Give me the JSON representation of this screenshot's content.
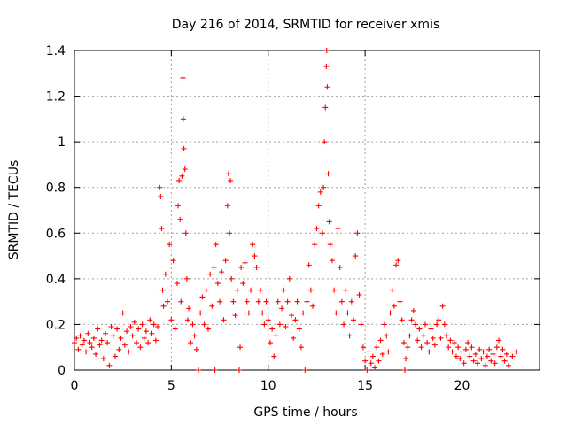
{
  "chart_data": {
    "type": "scatter",
    "title": "Day 216 of 2014, SRMTID for receiver xmis",
    "xlabel": "GPS time / hours",
    "ylabel": "SRMTID / TECUs",
    "xlim": [
      0,
      24
    ],
    "ylim": [
      0,
      1.4
    ],
    "x_ticks": [
      0,
      5,
      10,
      15,
      20
    ],
    "x_tick_labels": [
      "0",
      "5",
      "10",
      "15",
      "20"
    ],
    "y_ticks": [
      0,
      0.2,
      0.4,
      0.6,
      0.8,
      1.0,
      1.2,
      1.4
    ],
    "y_tick_labels": [
      "0",
      "0.2",
      "0.4",
      "0.6",
      "0.8",
      "1",
      "1.2",
      "1.4"
    ],
    "grid": true,
    "marker": "+",
    "color": "#ff0000",
    "series": [
      {
        "name": "SRMTID",
        "points": [
          [
            0.0,
            0.12
          ],
          [
            0.1,
            0.14
          ],
          [
            0.2,
            0.09
          ],
          [
            0.3,
            0.15
          ],
          [
            0.4,
            0.11
          ],
          [
            0.5,
            0.13
          ],
          [
            0.6,
            0.08
          ],
          [
            0.7,
            0.16
          ],
          [
            0.8,
            0.12
          ],
          [
            0.9,
            0.1
          ],
          [
            1.0,
            0.14
          ],
          [
            1.1,
            0.07
          ],
          [
            1.2,
            0.18
          ],
          [
            1.3,
            0.11
          ],
          [
            1.4,
            0.13
          ],
          [
            1.5,
            0.05
          ],
          [
            1.6,
            0.16
          ],
          [
            1.7,
            0.12
          ],
          [
            1.8,
            0.02
          ],
          [
            1.9,
            0.19
          ],
          [
            2.0,
            0.15
          ],
          [
            2.1,
            0.06
          ],
          [
            2.2,
            0.18
          ],
          [
            2.3,
            0.09
          ],
          [
            2.4,
            0.14
          ],
          [
            2.5,
            0.25
          ],
          [
            2.6,
            0.11
          ],
          [
            2.7,
            0.17
          ],
          [
            2.8,
            0.08
          ],
          [
            2.9,
            0.19
          ],
          [
            3.0,
            0.15
          ],
          [
            3.1,
            0.21
          ],
          [
            3.2,
            0.12
          ],
          [
            3.3,
            0.18
          ],
          [
            3.4,
            0.1
          ],
          [
            3.5,
            0.2
          ],
          [
            3.6,
            0.14
          ],
          [
            3.7,
            0.17
          ],
          [
            3.8,
            0.12
          ],
          [
            3.9,
            0.22
          ],
          [
            4.0,
            0.16
          ],
          [
            4.1,
            0.2
          ],
          [
            4.2,
            0.13
          ],
          [
            4.3,
            0.19
          ],
          [
            4.4,
            0.8
          ],
          [
            4.45,
            0.76
          ],
          [
            4.5,
            0.62
          ],
          [
            4.55,
            0.35
          ],
          [
            4.6,
            0.28
          ],
          [
            4.7,
            0.42
          ],
          [
            4.8,
            0.3
          ],
          [
            4.9,
            0.55
          ],
          [
            5.0,
            0.22
          ],
          [
            5.1,
            0.48
          ],
          [
            5.2,
            0.18
          ],
          [
            5.3,
            0.38
          ],
          [
            5.35,
            0.72
          ],
          [
            5.4,
            0.83
          ],
          [
            5.45,
            0.66
          ],
          [
            5.5,
            0.3
          ],
          [
            5.55,
            0.85
          ],
          [
            5.6,
            1.28
          ],
          [
            5.62,
            1.1
          ],
          [
            5.65,
            0.97
          ],
          [
            5.7,
            0.88
          ],
          [
            5.75,
            0.6
          ],
          [
            5.8,
            0.4
          ],
          [
            5.85,
            0.22
          ],
          [
            5.9,
            0.27
          ],
          [
            6.0,
            0.12
          ],
          [
            6.1,
            0.2
          ],
          [
            6.2,
            0.15
          ],
          [
            6.3,
            0.09
          ],
          [
            6.4,
            0.0
          ],
          [
            6.5,
            0.25
          ],
          [
            6.6,
            0.32
          ],
          [
            6.7,
            0.2
          ],
          [
            6.8,
            0.35
          ],
          [
            6.9,
            0.18
          ],
          [
            7.0,
            0.42
          ],
          [
            7.1,
            0.28
          ],
          [
            7.2,
            0.45
          ],
          [
            7.25,
            0.0
          ],
          [
            7.3,
            0.55
          ],
          [
            7.4,
            0.38
          ],
          [
            7.5,
            0.3
          ],
          [
            7.6,
            0.43
          ],
          [
            7.7,
            0.22
          ],
          [
            7.8,
            0.48
          ],
          [
            7.9,
            0.72
          ],
          [
            7.95,
            0.86
          ],
          [
            8.0,
            0.6
          ],
          [
            8.05,
            0.83
          ],
          [
            8.1,
            0.4
          ],
          [
            8.2,
            0.3
          ],
          [
            8.3,
            0.24
          ],
          [
            8.4,
            0.35
          ],
          [
            8.5,
            0.0
          ],
          [
            8.55,
            0.1
          ],
          [
            8.6,
            0.45
          ],
          [
            8.7,
            0.38
          ],
          [
            8.8,
            0.47
          ],
          [
            8.9,
            0.3
          ],
          [
            9.0,
            0.25
          ],
          [
            9.1,
            0.35
          ],
          [
            9.2,
            0.55
          ],
          [
            9.3,
            0.5
          ],
          [
            9.4,
            0.45
          ],
          [
            9.5,
            0.3
          ],
          [
            9.6,
            0.35
          ],
          [
            9.7,
            0.25
          ],
          [
            9.8,
            0.2
          ],
          [
            9.9,
            0.3
          ],
          [
            10.0,
            0.22
          ],
          [
            10.1,
            0.12
          ],
          [
            10.2,
            0.18
          ],
          [
            10.3,
            0.06
          ],
          [
            10.4,
            0.15
          ],
          [
            10.5,
            0.3
          ],
          [
            10.6,
            0.2
          ],
          [
            10.7,
            0.27
          ],
          [
            10.8,
            0.35
          ],
          [
            10.9,
            0.19
          ],
          [
            11.0,
            0.3
          ],
          [
            11.1,
            0.4
          ],
          [
            11.2,
            0.24
          ],
          [
            11.3,
            0.14
          ],
          [
            11.4,
            0.22
          ],
          [
            11.5,
            0.3
          ],
          [
            11.6,
            0.18
          ],
          [
            11.7,
            0.1
          ],
          [
            11.8,
            0.25
          ],
          [
            11.9,
            0.0
          ],
          [
            12.0,
            0.3
          ],
          [
            12.1,
            0.46
          ],
          [
            12.2,
            0.35
          ],
          [
            12.3,
            0.28
          ],
          [
            12.4,
            0.55
          ],
          [
            12.5,
            0.62
          ],
          [
            12.6,
            0.72
          ],
          [
            12.7,
            0.78
          ],
          [
            12.8,
            0.6
          ],
          [
            12.85,
            0.8
          ],
          [
            12.9,
            1.0
          ],
          [
            12.95,
            1.15
          ],
          [
            13.0,
            1.33
          ],
          [
            13.02,
            1.4
          ],
          [
            13.05,
            1.24
          ],
          [
            13.1,
            0.86
          ],
          [
            13.15,
            0.65
          ],
          [
            13.2,
            0.55
          ],
          [
            13.3,
            0.48
          ],
          [
            13.4,
            0.35
          ],
          [
            13.5,
            0.25
          ],
          [
            13.6,
            0.62
          ],
          [
            13.7,
            0.45
          ],
          [
            13.8,
            0.3
          ],
          [
            13.9,
            0.2
          ],
          [
            14.0,
            0.35
          ],
          [
            14.1,
            0.25
          ],
          [
            14.2,
            0.15
          ],
          [
            14.3,
            0.3
          ],
          [
            14.4,
            0.22
          ],
          [
            14.5,
            0.5
          ],
          [
            14.6,
            0.6
          ],
          [
            14.7,
            0.33
          ],
          [
            14.8,
            0.2
          ],
          [
            14.9,
            0.1
          ],
          [
            15.0,
            0.04
          ],
          [
            15.1,
            0.0
          ],
          [
            15.2,
            0.08
          ],
          [
            15.3,
            0.03
          ],
          [
            15.4,
            0.06
          ],
          [
            15.5,
            0.01
          ],
          [
            15.6,
            0.1
          ],
          [
            15.7,
            0.04
          ],
          [
            15.8,
            0.13
          ],
          [
            15.9,
            0.07
          ],
          [
            16.0,
            0.2
          ],
          [
            16.1,
            0.15
          ],
          [
            16.2,
            0.08
          ],
          [
            16.3,
            0.25
          ],
          [
            16.4,
            0.35
          ],
          [
            16.5,
            0.28
          ],
          [
            16.6,
            0.46
          ],
          [
            16.7,
            0.48
          ],
          [
            16.8,
            0.3
          ],
          [
            16.9,
            0.22
          ],
          [
            17.0,
            0.12
          ],
          [
            17.05,
            0.0
          ],
          [
            17.1,
            0.05
          ],
          [
            17.2,
            0.1
          ],
          [
            17.3,
            0.15
          ],
          [
            17.4,
            0.22
          ],
          [
            17.5,
            0.26
          ],
          [
            17.6,
            0.2
          ],
          [
            17.7,
            0.13
          ],
          [
            17.8,
            0.18
          ],
          [
            17.9,
            0.1
          ],
          [
            18.0,
            0.15
          ],
          [
            18.1,
            0.2
          ],
          [
            18.2,
            0.12
          ],
          [
            18.3,
            0.08
          ],
          [
            18.4,
            0.18
          ],
          [
            18.5,
            0.14
          ],
          [
            18.6,
            0.11
          ],
          [
            18.7,
            0.2
          ],
          [
            18.8,
            0.22
          ],
          [
            18.9,
            0.14
          ],
          [
            19.0,
            0.28
          ],
          [
            19.1,
            0.2
          ],
          [
            19.2,
            0.15
          ],
          [
            19.3,
            0.1
          ],
          [
            19.4,
            0.13
          ],
          [
            19.5,
            0.08
          ],
          [
            19.6,
            0.12
          ],
          [
            19.7,
            0.06
          ],
          [
            19.8,
            0.1
          ],
          [
            19.9,
            0.05
          ],
          [
            20.0,
            0.08
          ],
          [
            20.1,
            0.03
          ],
          [
            20.2,
            0.09
          ],
          [
            20.3,
            0.12
          ],
          [
            20.4,
            0.06
          ],
          [
            20.5,
            0.1
          ],
          [
            20.6,
            0.04
          ],
          [
            20.7,
            0.07
          ],
          [
            20.8,
            0.03
          ],
          [
            20.9,
            0.09
          ],
          [
            21.0,
            0.05
          ],
          [
            21.1,
            0.08
          ],
          [
            21.2,
            0.02
          ],
          [
            21.3,
            0.06
          ],
          [
            21.4,
            0.09
          ],
          [
            21.5,
            0.04
          ],
          [
            21.6,
            0.07
          ],
          [
            21.7,
            0.03
          ],
          [
            21.8,
            0.1
          ],
          [
            21.9,
            0.13
          ],
          [
            22.0,
            0.06
          ],
          [
            22.1,
            0.09
          ],
          [
            22.2,
            0.04
          ],
          [
            22.3,
            0.07
          ],
          [
            22.4,
            0.02
          ],
          [
            22.6,
            0.06
          ],
          [
            22.8,
            0.08
          ]
        ]
      }
    ]
  }
}
